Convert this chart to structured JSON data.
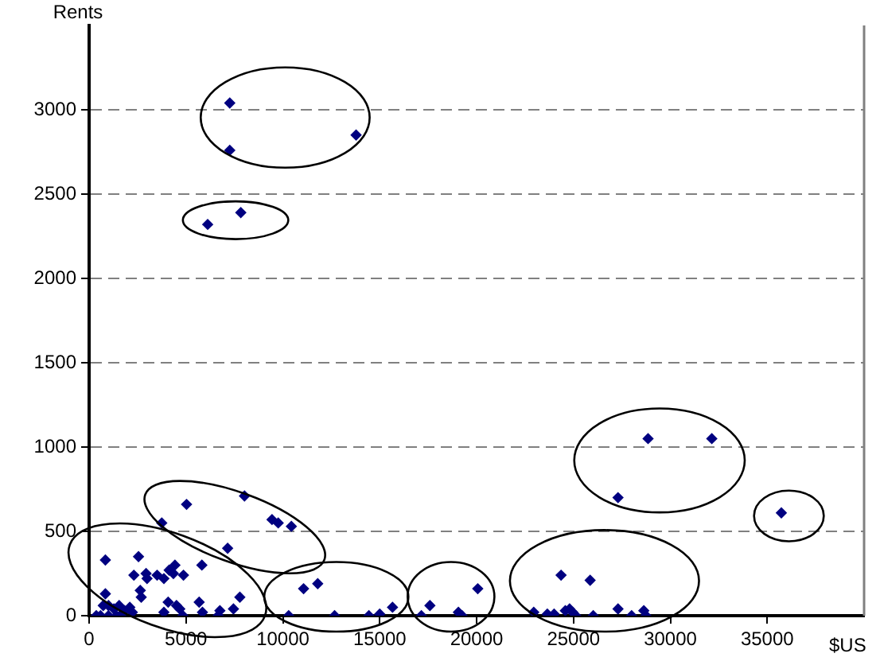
{
  "chart_data": {
    "type": "scatter",
    "xlabel": "$US",
    "ylabel": "Rents",
    "xlim": [
      0,
      40000
    ],
    "ylim": [
      0,
      3500
    ],
    "xticks": [
      0,
      5000,
      10000,
      15000,
      20000,
      25000,
      30000,
      35000
    ],
    "yticks": [
      0,
      500,
      1000,
      1500,
      2000,
      2500,
      3000
    ],
    "grid": "y",
    "marker": "diamond",
    "legend": false,
    "series": [
      {
        "color": "#000080",
        "x": [
          7260,
          7260,
          13780,
          6120,
          7830,
          28850,
          32140,
          27300,
          35730,
          24360,
          25860,
          27300,
          28000,
          28630,
          28740,
          22950,
          23650,
          24000,
          24580,
          24800,
          24960,
          25120,
          26020,
          17150,
          17590,
          19060,
          19250,
          20060,
          11070,
          11800,
          10300,
          12670,
          14440,
          15000,
          15660,
          5030,
          8020,
          3750,
          9440,
          9760,
          10440,
          7150,
          840,
          2550,
          2310,
          2940,
          2990,
          3510,
          3860,
          4130,
          4430,
          4350,
          4870,
          5820,
          2640,
          2690,
          7780,
          5680,
          5850,
          6750,
          6660,
          7450,
          4080,
          4510,
          3860,
          4840,
          4680,
          840,
          730,
          1000,
          1280,
          1550,
          1830,
          2100,
          2230,
          1410,
          1000,
          590,
          370,
          1680
        ],
        "values": [
          3040,
          2760,
          2850,
          2320,
          2390,
          1050,
          1050,
          700,
          610,
          240,
          210,
          40,
          0,
          30,
          0,
          20,
          10,
          10,
          30,
          40,
          20,
          0,
          0,
          0,
          60,
          20,
          0,
          160,
          160,
          190,
          0,
          0,
          0,
          10,
          50,
          660,
          710,
          550,
          570,
          550,
          530,
          400,
          330,
          350,
          240,
          250,
          220,
          240,
          220,
          270,
          300,
          250,
          240,
          300,
          150,
          110,
          110,
          80,
          20,
          30,
          0,
          40,
          80,
          60,
          20,
          0,
          40,
          130,
          60,
          60,
          40,
          60,
          30,
          50,
          20,
          0,
          0,
          0,
          0,
          10
        ]
      }
    ]
  }
}
